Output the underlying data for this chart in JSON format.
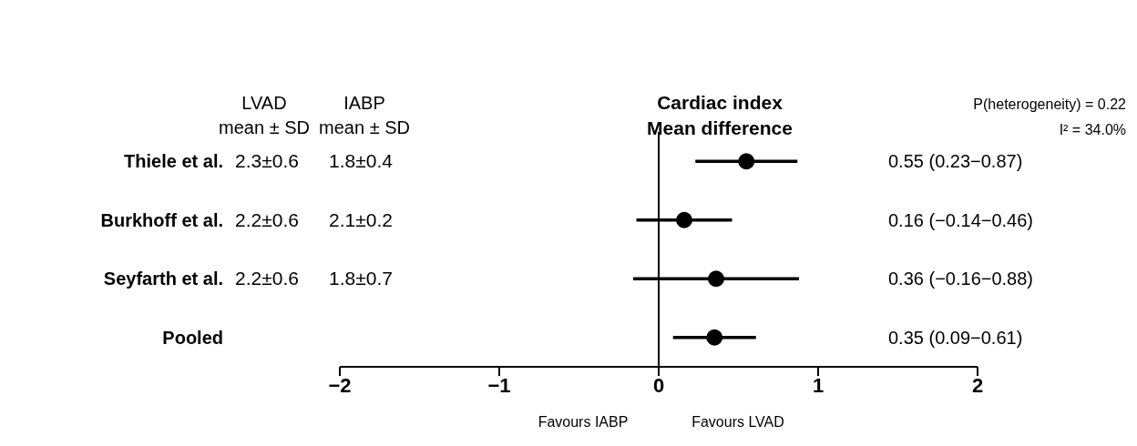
{
  "chart_data": {
    "type": "scatter",
    "title": "Cardiac index",
    "subtitle": "Mean difference",
    "categories": [
      "Thiele et al.",
      "Burkhoff et al.",
      "Seyfarth et al.",
      "Pooled"
    ],
    "orientation": "horizontal",
    "series": [
      {
        "color": "#000000",
        "values": [
          0.55,
          0.16,
          0.36,
          0.35
        ],
        "errors": [
          [
            0.23,
            0.87
          ],
          [
            -0.14,
            0.46
          ],
          [
            -0.16,
            0.88
          ],
          [
            0.09,
            0.61
          ]
        ]
      }
    ],
    "marker": "circle",
    "xlim": [
      -2,
      2
    ],
    "xticks": [
      {
        "value": -2,
        "label": "−2"
      },
      {
        "value": -1,
        "label": "−1"
      },
      0,
      1,
      2
    ],
    "ref_lines": [
      {
        "axis": "x",
        "value": 0,
        "color": "#000000"
      }
    ],
    "grid": false,
    "legend": false,
    "annotations": [
      "LVAD",
      "mean ± SD",
      "IABP",
      "mean ± SD",
      "2.3±0.6",
      "1.8±0.4",
      "2.2±0.6",
      "2.1±0.2",
      "2.2±0.6",
      "1.8±0.7",
      "P(heterogeneity) = 0.22",
      "I² = 34.0%",
      "Favours IABP",
      "Favours LVAD",
      "0.55 (0.23−0.87)",
      "0.16 (−0.14−0.46)",
      "0.36 (−0.16−0.88)",
      "0.35 (0.09−0.61)"
    ]
  }
}
